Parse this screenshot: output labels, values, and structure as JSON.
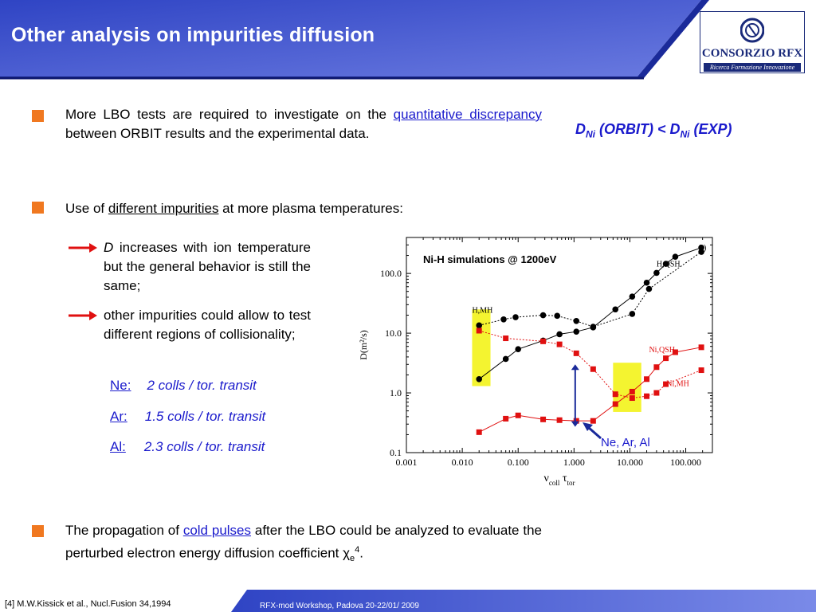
{
  "header": {
    "title": "Other analysis on impurities diffusion",
    "logo_name": "CONSORZIO RFX",
    "logo_tagline": "Ricerca Formazione Innovazione"
  },
  "bullet1": {
    "text_before": "More LBO tests are required to investigate on the ",
    "link": "quantitative discrepancy",
    "text_after": " between ORBIT results and the experimental data."
  },
  "formula": {
    "d1": "D",
    "sub1": "Ni",
    "orbit": " (ORBIT) < ",
    "d2": "D",
    "sub2": "Ni",
    "exp": " (EXP)"
  },
  "bullet2": {
    "text_before": "Use of ",
    "link": "different impurities",
    "text_after": " at more plasma temperatures:"
  },
  "sub1": {
    "d": "D",
    "text": " increases with ion temperature but the general behavior is still the same;"
  },
  "sub2": {
    "text": "other impurities could allow to test different regions of collisionality;"
  },
  "elements": [
    {
      "symbol": "Ne:",
      "value": "2 colls / tor. transit"
    },
    {
      "symbol": "Ar:",
      "value": "1.5 colls / tor. transit"
    },
    {
      "symbol": "Al:",
      "value": "2.3 colls / tor. transit"
    }
  ],
  "bullet3": {
    "text_before": "The propagation of ",
    "link": "cold pulses",
    "text_middle": " after the LBO could be analyzed to evaluate the perturbed electron energy diffusion coefficient ",
    "chi": "χ",
    "chi_sub": "e",
    "sup": "4",
    "end": "."
  },
  "footer": {
    "footnote": "[4] M.W.Kissick et al., Nucl.Fusion 34,1994",
    "workshop": "RFX-mod  Workshop, Padova  20-22/01/ 2009"
  },
  "colors": {
    "header_blue": "#3a4fc8",
    "bullet": "#f07820",
    "link": "#1a1acc",
    "h_series": "#000000",
    "ni_series": "#e01010",
    "highlight": "#f4f430"
  },
  "chart_data": {
    "type": "scatter",
    "title": "Ni-H simulations @ 1200eV",
    "panel_label": "b)",
    "xlabel": "ν",
    "xlabel_sub1": "coll",
    "xlabel_mid": " τ",
    "xlabel_sub2": "tor",
    "ylabel": "D(m²/s)",
    "xscale": "log",
    "yscale": "log",
    "xlim": [
      0.001,
      300
    ],
    "ylim": [
      0.1,
      400
    ],
    "xticks": [
      0.001,
      0.01,
      0.1,
      1,
      10,
      100
    ],
    "xtick_labels": [
      "0.001",
      "0.010",
      "0.100",
      "1.000",
      "10.000",
      "100.000"
    ],
    "yticks": [
      0.1,
      1,
      10,
      100
    ],
    "ytick_labels": [
      "0.1",
      "1.0",
      "10.0",
      "100.0"
    ],
    "grid": false,
    "series": [
      {
        "name": "H,QSH",
        "color": "#000000",
        "marker": "circle",
        "line": "solid",
        "x": [
          0.02,
          0.06,
          0.1,
          0.28,
          0.55,
          1.1,
          2.2,
          5.5,
          11,
          20,
          30,
          44,
          65,
          190
        ],
        "y": [
          1.7,
          3.7,
          5.4,
          7.5,
          9.6,
          10.6,
          12.5,
          25,
          41,
          70,
          102,
          145,
          190,
          270
        ]
      },
      {
        "name": "H,MH",
        "color": "#000000",
        "marker": "circle",
        "line": "dotted",
        "x": [
          0.02,
          0.055,
          0.09,
          0.28,
          0.5,
          1.1,
          2.2,
          11,
          22,
          190
        ],
        "y": [
          13.5,
          17,
          18.5,
          20,
          19.5,
          16,
          12.8,
          21,
          55,
          230
        ]
      },
      {
        "name": "Ni,QSH",
        "color": "#e01010",
        "marker": "square",
        "line": "solid",
        "x": [
          0.02,
          0.06,
          0.1,
          0.28,
          0.55,
          1.1,
          2.2,
          5.5,
          11,
          20,
          30,
          44,
          65,
          190
        ],
        "y": [
          0.22,
          0.37,
          0.42,
          0.36,
          0.35,
          0.34,
          0.34,
          0.65,
          1.05,
          1.7,
          2.7,
          3.8,
          4.8,
          5.8
        ]
      },
      {
        "name": "Ni,MH",
        "color": "#e01010",
        "marker": "square",
        "line": "dotted",
        "x": [
          0.02,
          0.06,
          0.28,
          0.55,
          1.1,
          2.2,
          5.5,
          11,
          20,
          30,
          44,
          190
        ],
        "y": [
          11,
          8.2,
          7.3,
          6.5,
          4.6,
          2.5,
          0.95,
          0.82,
          0.88,
          1,
          1.4,
          2.4
        ]
      }
    ],
    "annotations": {
      "arrow_label": "Ne, Ar, Al",
      "highlights": [
        {
          "x": [
            0.015,
            0.032
          ],
          "y": [
            1.3,
            25
          ]
        },
        {
          "x": [
            5,
            16
          ],
          "y": [
            0.48,
            3.2
          ]
        }
      ],
      "series_labels": [
        {
          "text": "H,MH",
          "x": 0.015,
          "y": 22
        },
        {
          "text": "H,QSH",
          "x": 30,
          "y": 130
        },
        {
          "text": "Ni,QSH",
          "x": 22,
          "y": 4.8
        },
        {
          "text": "Ni,MH",
          "x": 45,
          "y": 1.3
        }
      ]
    }
  }
}
